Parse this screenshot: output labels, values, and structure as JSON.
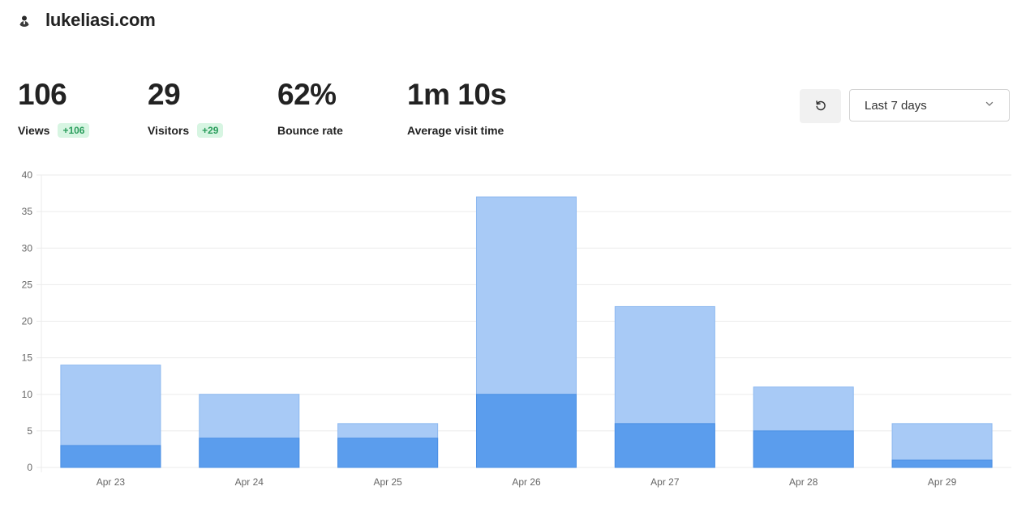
{
  "site": {
    "name": "lukeliasi.com",
    "avatar_icon": "user-avatar-icon"
  },
  "stats": [
    {
      "value": "106",
      "label": "Views",
      "delta": "+106"
    },
    {
      "value": "29",
      "label": "Visitors",
      "delta": "+29"
    },
    {
      "value": "62%",
      "label": "Bounce rate"
    },
    {
      "value": "1m 10s",
      "label": "Average visit time"
    }
  ],
  "controls": {
    "refresh_icon": "refresh-icon",
    "range_value": "Last 7 days",
    "range_icon": "chevron-down-icon"
  },
  "colors": {
    "views_bar": "#a8caf6",
    "visitors_bar": "#5b9ded",
    "badge_bg": "#d7f5e2",
    "badge_text": "#2a9d5c"
  },
  "chart_data": {
    "type": "bar",
    "categories": [
      "Apr 23",
      "Apr 24",
      "Apr 25",
      "Apr 26",
      "Apr 27",
      "Apr 28",
      "Apr 29"
    ],
    "series": [
      {
        "values": [
          14,
          10,
          6,
          37,
          22,
          11,
          6
        ]
      },
      {
        "values": [
          3,
          4,
          4,
          10,
          6,
          5,
          1
        ]
      }
    ],
    "ylim": [
      0,
      40
    ],
    "yticks": [
      "0",
      "5",
      "10",
      "15",
      "20",
      "25",
      "30",
      "35",
      "40"
    ],
    "grid": true
  }
}
